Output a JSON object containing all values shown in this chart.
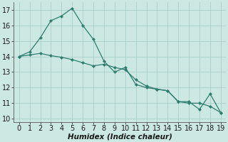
{
  "title": "",
  "xlabel": "Humidex (Indice chaleur)",
  "x": [
    0,
    1,
    2,
    3,
    4,
    5,
    6,
    7,
    8,
    9,
    10,
    11,
    12,
    13,
    14,
    15,
    16,
    17,
    18,
    19
  ],
  "line1": [
    14.0,
    14.3,
    15.2,
    16.3,
    16.6,
    17.1,
    16.0,
    15.1,
    13.7,
    13.0,
    13.3,
    12.2,
    12.0,
    11.9,
    11.8,
    11.1,
    11.1,
    10.6,
    11.6,
    10.4
  ],
  "line2": [
    14.0,
    14.1,
    14.2,
    14.05,
    13.95,
    13.8,
    13.6,
    13.4,
    13.5,
    13.3,
    13.15,
    12.5,
    12.1,
    11.9,
    11.8,
    11.1,
    11.0,
    11.0,
    10.8,
    10.4
  ],
  "line_color": "#2e7d6e",
  "bg_color": "#cce8e3",
  "grid_color": "#aacfca",
  "ylim": [
    9.8,
    17.5
  ],
  "yticks": [
    10,
    11,
    12,
    13,
    14,
    15,
    16,
    17
  ],
  "xlim": [
    -0.5,
    19.5
  ],
  "xticks": [
    0,
    1,
    2,
    3,
    4,
    5,
    6,
    7,
    8,
    9,
    10,
    11,
    12,
    13,
    14,
    15,
    16,
    17,
    18,
    19
  ],
  "tick_fontsize": 7,
  "label_fontsize": 7.5
}
